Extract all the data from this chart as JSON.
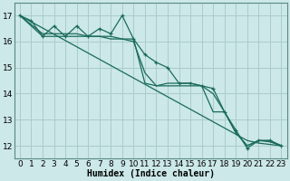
{
  "title": "",
  "xlabel": "Humidex (Indice chaleur)",
  "bg_color": "#cce8e8",
  "grid_color": "#aacccc",
  "line_color": "#1a6b5a",
  "xlim": [
    -0.5,
    23.5
  ],
  "ylim": [
    11.5,
    17.5
  ],
  "xticks": [
    0,
    1,
    2,
    3,
    4,
    5,
    6,
    7,
    8,
    9,
    10,
    11,
    12,
    13,
    14,
    15,
    16,
    17,
    18,
    19,
    20,
    21,
    22,
    23
  ],
  "yticks": [
    12,
    13,
    14,
    15,
    16,
    17
  ],
  "x_data": [
    0,
    1,
    2,
    3,
    4,
    5,
    6,
    7,
    8,
    9,
    10,
    11,
    12,
    13,
    14,
    15,
    16,
    17,
    18,
    19,
    20,
    21,
    22,
    23
  ],
  "y_zigzag": [
    17.0,
    16.8,
    16.2,
    16.6,
    16.2,
    16.6,
    16.2,
    16.5,
    16.3,
    17.0,
    16.1,
    15.5,
    15.2,
    15.0,
    14.4,
    14.4,
    14.3,
    14.2,
    13.3,
    12.6,
    11.9,
    12.2,
    12.2,
    12.0
  ],
  "y_smooth": [
    17.0,
    16.65,
    16.3,
    16.3,
    16.3,
    16.3,
    16.2,
    16.2,
    16.2,
    16.1,
    16.0,
    14.8,
    14.3,
    14.4,
    14.4,
    14.4,
    14.3,
    13.3,
    13.3,
    12.5,
    12.0,
    12.2,
    12.2,
    12.0
  ],
  "y_flat": [
    17.0,
    16.6,
    16.2,
    16.2,
    16.2,
    16.2,
    16.2,
    16.2,
    16.1,
    16.1,
    16.1,
    14.4,
    14.3,
    14.3,
    14.3,
    14.3,
    14.3,
    14.0,
    13.3,
    12.5,
    12.0,
    12.2,
    12.15,
    12.0
  ],
  "y_trend": [
    17.0,
    16.76,
    16.52,
    16.28,
    16.04,
    15.8,
    15.56,
    15.32,
    15.08,
    14.84,
    14.6,
    14.36,
    14.12,
    13.88,
    13.64,
    13.4,
    13.16,
    12.92,
    12.68,
    12.44,
    12.2,
    12.1,
    12.05,
    12.0
  ],
  "xlabel_fontsize": 7,
  "tick_fontsize": 6.5
}
